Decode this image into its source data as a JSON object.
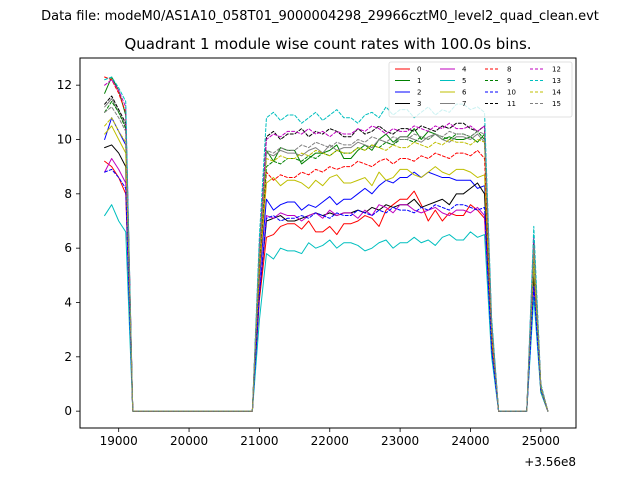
{
  "figure": {
    "suptitle": "Data file: modeM0/AS1A10_058T01_9000004298_29966cztM0_level2_quad_clean.evt",
    "title": "Quadrant 1 module wise count rates with 100.0s bins.",
    "x_offset_label": "+3.56e8"
  },
  "chart_data": {
    "type": "line",
    "title": "Quadrant 1 module wise count rates with 100.0s bins.",
    "xlabel": "",
    "ylabel": "",
    "x_offset": 356000000,
    "xlim": [
      18450,
      25500
    ],
    "ylim": [
      -0.62,
      13.0
    ],
    "x_ticks": [
      19000,
      20000,
      21000,
      22000,
      23000,
      24000,
      25000
    ],
    "y_ticks": [
      0,
      2,
      4,
      6,
      8,
      10,
      12
    ],
    "x_tick_labels": [
      "19000",
      "20000",
      "21000",
      "22000",
      "23000",
      "24000",
      "25000"
    ],
    "y_tick_labels": [
      "0",
      "2",
      "4",
      "6",
      "8",
      "10",
      "12"
    ],
    "grid": false,
    "legend_position": "top-right",
    "legend_columns": 4,
    "x": [
      18800,
      18900,
      19000,
      19100,
      19200,
      19300,
      19400,
      19500,
      19600,
      19700,
      19800,
      19900,
      20000,
      20100,
      20200,
      20300,
      20400,
      20500,
      20600,
      20700,
      20800,
      20900,
      21000,
      21100,
      21200,
      21300,
      21400,
      21500,
      21600,
      21700,
      21800,
      21900,
      22000,
      22100,
      22200,
      22300,
      22400,
      22500,
      22600,
      22700,
      22800,
      22900,
      23000,
      23100,
      23200,
      23300,
      23400,
      23500,
      23600,
      23700,
      23800,
      23900,
      24000,
      24100,
      24200,
      24300,
      24400,
      24500,
      24600,
      24700,
      24800,
      24900,
      25000,
      25100
    ],
    "series": [
      {
        "name": "0",
        "color": "#ff0000",
        "dash": "solid",
        "plateau": [
          9.2,
          9.0,
          8.6,
          8.0,
          6.6,
          6.4,
          6.5,
          6.8,
          6.9,
          6.7,
          7.0,
          6.6,
          6.6,
          6.8,
          6.5,
          6.9,
          7.0,
          7.2,
          7.1,
          6.8,
          7.4,
          7.6,
          7.8,
          8.1,
          7.6,
          7.0,
          7.4,
          7.0,
          7.3,
          7.2,
          7.6,
          7.4,
          7.1,
          7.2
        ],
        "burst": 4.8,
        "tail": 0.8
      },
      {
        "name": "1",
        "color": "#008000",
        "dash": "solid",
        "plateau": [
          11.7,
          12.3,
          11.8,
          10.9,
          9.4,
          9.6,
          9.2,
          9.7,
          9.6,
          9.1,
          9.3,
          9.5,
          9.5,
          9.6,
          9.8,
          9.3,
          9.6,
          9.8,
          9.6,
          10.0,
          10.2,
          9.9,
          10.1,
          10.4,
          10.0,
          10.3,
          10.2,
          10.0,
          10.1,
          10.0,
          10.1,
          9.9,
          10.2,
          9.6
        ],
        "burst": 5.6,
        "tail": 0.9
      },
      {
        "name": "2",
        "color": "#0000ff",
        "dash": "solid",
        "plateau": [
          10.0,
          10.8,
          10.3,
          9.8,
          7.8,
          7.8,
          7.4,
          7.6,
          7.7,
          7.4,
          7.6,
          7.5,
          7.7,
          7.9,
          7.6,
          7.8,
          8.0,
          8.2,
          8.0,
          8.3,
          8.5,
          8.4,
          8.6,
          8.8,
          8.6,
          8.8,
          8.7,
          8.6,
          8.6,
          8.5,
          8.5,
          8.2,
          8.3,
          7.8
        ],
        "burst": 5.2,
        "tail": 0.8
      },
      {
        "name": "3",
        "color": "#000000",
        "dash": "solid",
        "plateau": [
          9.7,
          9.8,
          9.5,
          9.0,
          6.9,
          7.0,
          7.1,
          7.2,
          7.0,
          7.1,
          7.2,
          7.3,
          7.2,
          7.3,
          7.2,
          7.3,
          7.4,
          7.3,
          7.5,
          7.4,
          7.6,
          7.5,
          7.6,
          7.8,
          7.5,
          7.6,
          7.7,
          7.8,
          7.6,
          8.0,
          8.2,
          8.4,
          8.0,
          7.6
        ],
        "burst": 4.9,
        "tail": 0.7
      },
      {
        "name": "4",
        "color": "#bf00bf",
        "dash": "solid",
        "plateau": [
          8.8,
          9.3,
          8.9,
          8.4,
          7.0,
          7.2,
          7.1,
          7.3,
          7.2,
          7.0,
          7.2,
          7.3,
          7.1,
          7.4,
          7.2,
          7.3,
          7.1,
          7.4,
          7.2,
          7.6,
          7.5,
          7.3,
          7.6,
          7.4,
          7.3,
          7.4,
          7.5,
          7.3,
          7.2,
          7.4,
          7.3,
          7.5,
          7.2,
          7.1
        ],
        "burst": 4.6,
        "tail": 0.8
      },
      {
        "name": "5",
        "color": "#00bfbf",
        "dash": "solid",
        "plateau": [
          7.2,
          7.6,
          7.0,
          6.6,
          5.4,
          5.8,
          5.6,
          6.0,
          5.9,
          5.8,
          6.2,
          6.0,
          6.1,
          6.3,
          6.0,
          6.2,
          6.1,
          5.9,
          6.0,
          6.2,
          6.3,
          6.0,
          6.2,
          6.4,
          6.2,
          6.3,
          6.1,
          6.4,
          6.5,
          6.3,
          6.6,
          6.4,
          6.5,
          6.3
        ],
        "burst": 4.2,
        "tail": 0.7
      },
      {
        "name": "6",
        "color": "#bfbf00",
        "dash": "solid",
        "plateau": [
          10.2,
          10.5,
          10.0,
          9.5,
          8.2,
          8.4,
          8.6,
          8.3,
          8.5,
          8.4,
          8.2,
          8.5,
          8.3,
          8.6,
          8.7,
          8.4,
          8.5,
          8.6,
          8.3,
          8.8,
          8.5,
          8.6,
          8.9,
          8.7,
          8.6,
          8.8,
          9.0,
          8.8,
          8.7,
          8.9,
          8.8,
          8.6,
          8.7,
          8.5
        ],
        "burst": 5.4,
        "tail": 0.8
      },
      {
        "name": "7",
        "color": "#808080",
        "dash": "solid",
        "plateau": [
          11.2,
          11.5,
          11.0,
          10.5,
          9.3,
          9.5,
          9.4,
          9.6,
          9.5,
          9.4,
          9.6,
          9.7,
          9.5,
          9.8,
          9.6,
          9.7,
          9.9,
          9.8,
          9.7,
          10.0,
          9.9,
          9.8,
          10.1,
          10.0,
          9.9,
          10.1,
          10.2,
          10.0,
          9.9,
          10.1,
          10.0,
          10.2,
          9.9,
          9.7
        ],
        "burst": 5.8,
        "tail": 0.9
      },
      {
        "name": "8",
        "color": "#ff0000",
        "dash": "dashed",
        "plateau": [
          12.3,
          12.2,
          11.7,
          11.0,
          8.6,
          8.8,
          8.5,
          8.7,
          8.6,
          8.8,
          8.7,
          8.9,
          8.8,
          9.0,
          8.9,
          9.0,
          9.2,
          9.1,
          9.0,
          9.2,
          9.3,
          9.1,
          9.3,
          9.2,
          9.4,
          9.3,
          9.5,
          9.4,
          9.3,
          9.5,
          9.4,
          9.6,
          9.3,
          9.0
        ],
        "burst": 6.2,
        "tail": 0.9
      },
      {
        "name": "9",
        "color": "#008000",
        "dash": "dashed",
        "plateau": [
          11.0,
          11.4,
          11.0,
          10.4,
          8.9,
          9.0,
          9.2,
          9.1,
          9.3,
          9.2,
          9.4,
          9.3,
          9.5,
          9.4,
          9.6,
          9.5,
          9.7,
          9.6,
          9.8,
          9.7,
          9.9,
          9.8,
          10.0,
          9.9,
          10.1,
          10.0,
          10.2,
          10.1,
          10.0,
          10.2,
          10.1,
          10.3,
          10.0,
          9.7
        ],
        "burst": 6.0,
        "tail": 0.9
      },
      {
        "name": "10",
        "color": "#0000ff",
        "dash": "dashed",
        "plateau": [
          8.8,
          8.9,
          8.6,
          8.2,
          7.0,
          7.1,
          7.2,
          7.0,
          7.1,
          7.2,
          7.1,
          7.3,
          7.2,
          7.1,
          7.3,
          7.2,
          7.4,
          7.3,
          7.2,
          7.4,
          7.3,
          7.5,
          7.4,
          7.3,
          7.5,
          7.4,
          7.6,
          7.5,
          7.4,
          7.6,
          7.5,
          7.4,
          7.5,
          7.2
        ],
        "burst": 4.6,
        "tail": 0.8
      },
      {
        "name": "11",
        "color": "#000000",
        "dash": "dashed",
        "plateau": [
          11.3,
          11.6,
          11.1,
          10.6,
          9.8,
          10.1,
          10.3,
          10.0,
          10.2,
          10.4,
          10.1,
          10.3,
          10.2,
          10.4,
          10.3,
          10.1,
          10.4,
          10.2,
          10.3,
          10.5,
          10.3,
          10.2,
          10.4,
          10.3,
          10.5,
          10.4,
          10.3,
          10.5,
          10.4,
          10.6,
          10.4,
          10.3,
          10.5,
          10.2
        ],
        "burst": 6.3,
        "tail": 0.9
      },
      {
        "name": "12",
        "color": "#bf00bf",
        "dash": "dashed",
        "plateau": [
          12.0,
          12.2,
          11.8,
          11.2,
          9.8,
          10.0,
          10.2,
          10.1,
          10.3,
          10.2,
          10.4,
          10.2,
          10.3,
          10.1,
          10.3,
          10.2,
          10.4,
          10.3,
          10.5,
          10.4,
          10.2,
          10.4,
          10.3,
          10.5,
          10.4,
          10.3,
          10.5,
          10.4,
          10.6,
          10.4,
          10.5,
          10.3,
          10.5,
          10.4
        ],
        "burst": 6.5,
        "tail": 1.0
      },
      {
        "name": "13",
        "color": "#00bfbf",
        "dash": "dashed",
        "plateau": [
          12.2,
          12.3,
          11.9,
          11.4,
          10.4,
          10.8,
          11.0,
          10.7,
          10.9,
          10.6,
          10.8,
          11.0,
          10.7,
          10.9,
          11.1,
          10.8,
          10.6,
          10.9,
          11.0,
          10.8,
          11.2,
          10.9,
          11.1,
          10.8,
          11.0,
          11.2,
          10.9,
          11.1,
          11.0,
          11.3,
          11.1,
          11.2,
          11.0,
          10.9
        ],
        "burst": 6.8,
        "tail": 1.0
      },
      {
        "name": "14",
        "color": "#bfbf00",
        "dash": "dashed",
        "plateau": [
          10.5,
          10.8,
          10.3,
          9.9,
          9.1,
          9.3,
          9.2,
          9.4,
          9.3,
          9.5,
          9.4,
          9.6,
          9.5,
          9.4,
          9.6,
          9.5,
          9.7,
          9.6,
          9.8,
          9.7,
          9.6,
          9.8,
          9.7,
          9.9,
          9.8,
          9.7,
          9.9,
          9.8,
          10.0,
          9.9,
          9.8,
          10.0,
          9.9,
          9.6
        ],
        "burst": 5.9,
        "tail": 0.9
      },
      {
        "name": "15",
        "color": "#808080",
        "dash": "dashed",
        "plateau": [
          11.0,
          11.2,
          10.8,
          10.3,
          9.4,
          9.6,
          9.5,
          9.7,
          9.6,
          9.8,
          9.7,
          9.9,
          9.8,
          9.7,
          9.9,
          9.8,
          10.0,
          9.9,
          10.1,
          10.0,
          9.9,
          10.1,
          10.0,
          10.2,
          10.1,
          10.0,
          10.2,
          10.1,
          10.3,
          10.2,
          10.1,
          10.3,
          10.2,
          10.0
        ],
        "burst": 6.1,
        "tail": 0.9
      }
    ]
  }
}
